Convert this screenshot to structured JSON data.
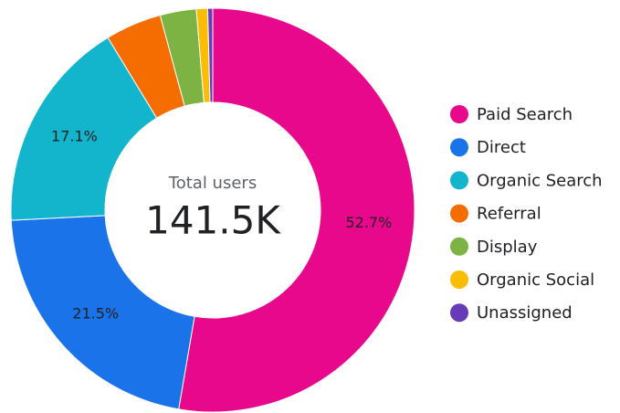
{
  "chart_data": {
    "type": "donut",
    "center_label": "Total users",
    "center_value": "141.5K",
    "categories": [
      "Paid Search",
      "Direct",
      "Organic Search",
      "Referral",
      "Display",
      "Organic Social",
      "Unassigned"
    ],
    "values": [
      52.7,
      21.5,
      17.1,
      4.5,
      2.9,
      0.9,
      0.4
    ],
    "value_labels": [
      "52.7%",
      "21.5%",
      "17.1%",
      null,
      null,
      null,
      null
    ],
    "colors": [
      "#e8088c",
      "#1a73e8",
      "#12b5cb",
      "#f56c00",
      "#7cb342",
      "#fbbc04",
      "#673ab7"
    ],
    "legend": "right"
  }
}
